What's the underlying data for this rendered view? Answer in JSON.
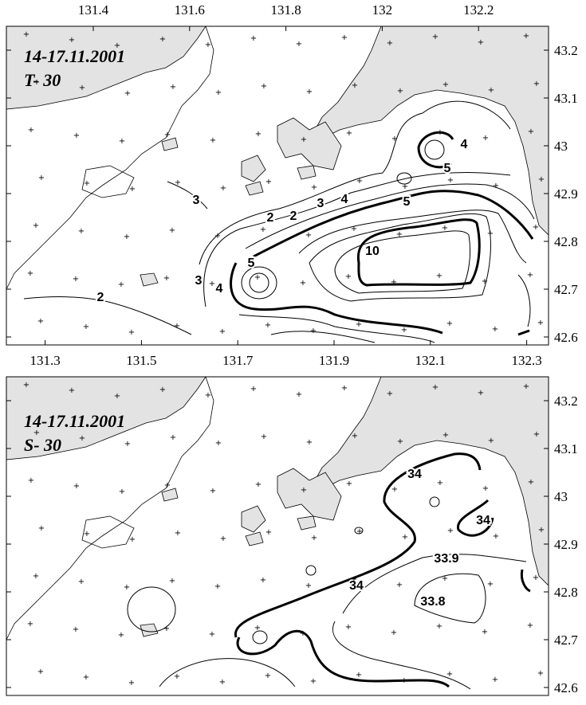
{
  "panels": [
    {
      "title": "14-17.11.2001",
      "subtitle": "T- 30",
      "lon_top": [
        131.4,
        131.6,
        131.8,
        132,
        132.2
      ],
      "lon_bottom": [
        131.3,
        131.5,
        131.7,
        131.9,
        132.1,
        132.3
      ],
      "lat": [
        43.2,
        43.1,
        43,
        42.9,
        42.8,
        42.7,
        42.6
      ],
      "contour_labels": [
        4,
        5,
        3,
        2,
        2,
        3,
        4,
        5,
        10,
        5,
        3,
        4,
        2
      ]
    },
    {
      "title": "14-17.11.2001",
      "subtitle": "S- 30",
      "lat": [
        43.2,
        43.1,
        43,
        42.9,
        42.8,
        42.7,
        42.6
      ],
      "contour_labels": [
        34,
        34,
        33.9,
        34,
        33.8
      ]
    }
  ]
}
